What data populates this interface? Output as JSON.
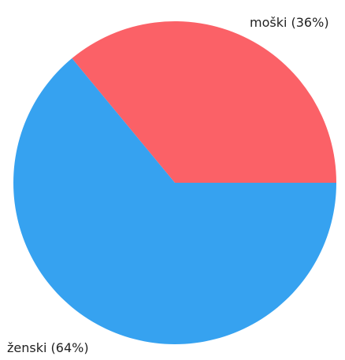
{
  "chart_data": {
    "type": "pie",
    "slices": [
      {
        "label": "moški (36%)",
        "value": 36,
        "color": "#fb6167"
      },
      {
        "label": "ženski (64%)",
        "value": 64,
        "color": "#36a2f0"
      }
    ],
    "start_angle_deg": 0,
    "direction": "counterclockwise",
    "legend": "none"
  }
}
